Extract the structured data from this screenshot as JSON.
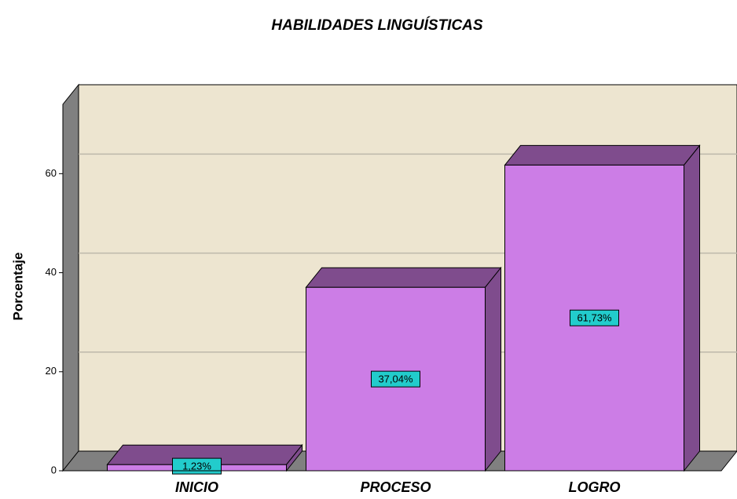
{
  "chart_data": {
    "type": "bar",
    "title": "HABILIDADES LINGUÍSTICAS",
    "y_label": "Porcentaje",
    "categories": [
      "INICIO",
      "PROCESO",
      "LOGRO"
    ],
    "values": [
      1.23,
      37.04,
      61.73
    ],
    "value_labels": [
      "1,23%",
      "37,04%",
      "61,73%"
    ],
    "color": "#cc7de6",
    "ylim": [
      0,
      74
    ],
    "yticks": [
      0,
      20,
      40,
      60
    ],
    "grid": true
  }
}
